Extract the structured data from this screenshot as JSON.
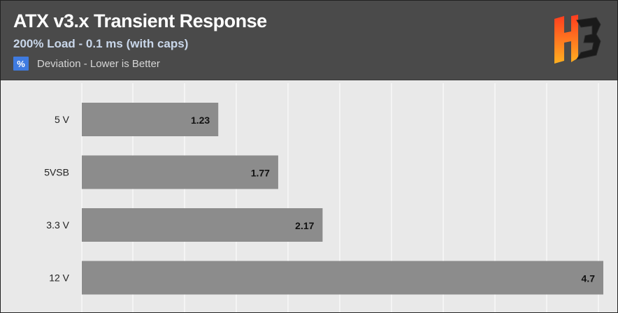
{
  "header": {
    "title": "ATX v3.x Transient Response",
    "subtitle": "200% Load - 0.1 ms (with caps)",
    "legend_symbol": "%",
    "legend_label": "Deviation - Lower is Better",
    "logo_icon": "hb-logo-icon"
  },
  "colors": {
    "bar": "#8c8c8c",
    "plot_background": "#e9e9e9",
    "header_background": "#4a4a4a",
    "legend_swatch": "#3f7be0"
  },
  "chart_data": {
    "type": "bar",
    "orientation": "horizontal",
    "title": "ATX v3.x Transient Response",
    "subtitle": "200% Load - 0.1 ms (with caps)",
    "categories": [
      "5 V",
      "5VSB",
      "3.3 V",
      "12 V"
    ],
    "series": [
      {
        "name": "Deviation - Lower is Better",
        "values": [
          1.23,
          1.77,
          2.17,
          4.7
        ]
      }
    ],
    "value_labels": [
      "1.23",
      "1.77",
      "2.17",
      "4.7"
    ],
    "xlim": [
      0,
      4.7
    ],
    "grid": true,
    "legend_position": "top-left"
  }
}
